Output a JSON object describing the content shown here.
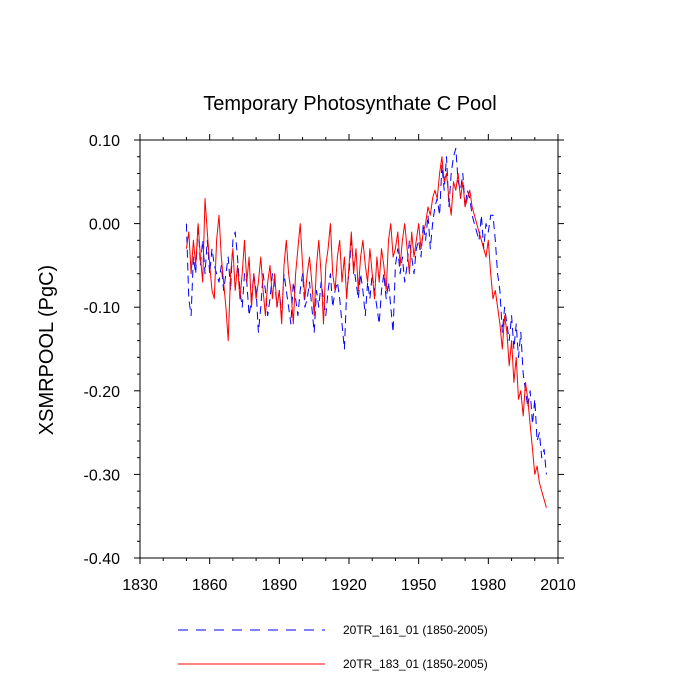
{
  "chart_data": {
    "type": "line",
    "title": "Temporary Photosynthate C Pool",
    "xlabel": "",
    "ylabel": "XSMRPOOL  (PgC)",
    "xlim": [
      1830,
      2010
    ],
    "ylim": [
      -0.4,
      0.1
    ],
    "xticks": [
      "1830",
      "1860",
      "1890",
      "1920",
      "1950",
      "1980",
      "2010"
    ],
    "yticks": [
      "0.10",
      "0.00",
      "-0.10",
      "-0.20",
      "-0.30",
      "-0.40"
    ],
    "series": [
      {
        "name": "20TR_161_01 (1850-2005)",
        "color": "#0000ff",
        "dash": "dashed",
        "x": [
          1850,
          1851,
          1852,
          1853,
          1854,
          1855,
          1856,
          1857,
          1858,
          1859,
          1860,
          1861,
          1862,
          1863,
          1864,
          1865,
          1866,
          1867,
          1868,
          1869,
          1870,
          1871,
          1872,
          1873,
          1874,
          1875,
          1876,
          1877,
          1878,
          1879,
          1880,
          1881,
          1882,
          1883,
          1884,
          1885,
          1886,
          1887,
          1888,
          1889,
          1890,
          1891,
          1892,
          1893,
          1894,
          1895,
          1896,
          1897,
          1898,
          1899,
          1900,
          1901,
          1902,
          1903,
          1904,
          1905,
          1906,
          1907,
          1908,
          1909,
          1910,
          1911,
          1912,
          1913,
          1914,
          1915,
          1916,
          1917,
          1918,
          1919,
          1920,
          1921,
          1922,
          1923,
          1924,
          1925,
          1926,
          1927,
          1928,
          1929,
          1930,
          1931,
          1932,
          1933,
          1934,
          1935,
          1936,
          1937,
          1938,
          1939,
          1940,
          1941,
          1942,
          1943,
          1944,
          1945,
          1946,
          1947,
          1948,
          1949,
          1950,
          1951,
          1952,
          1953,
          1954,
          1955,
          1956,
          1957,
          1958,
          1959,
          1960,
          1961,
          1962,
          1963,
          1964,
          1965,
          1966,
          1967,
          1968,
          1969,
          1970,
          1971,
          1972,
          1973,
          1974,
          1975,
          1976,
          1977,
          1978,
          1979,
          1980,
          1981,
          1982,
          1983,
          1984,
          1985,
          1986,
          1987,
          1988,
          1989,
          1990,
          1991,
          1992,
          1993,
          1994,
          1995,
          1996,
          1997,
          1998,
          1999,
          2000,
          2001,
          2002,
          2003,
          2004,
          2005
        ],
        "values": [
          0.0,
          -0.09,
          -0.11,
          -0.04,
          -0.06,
          0.0,
          -0.05,
          -0.02,
          -0.06,
          -0.02,
          -0.06,
          -0.03,
          -0.05,
          -0.06,
          -0.07,
          -0.05,
          -0.08,
          -0.06,
          -0.04,
          -0.08,
          -0.02,
          -0.01,
          -0.04,
          -0.08,
          -0.1,
          -0.06,
          -0.07,
          -0.11,
          -0.09,
          -0.06,
          -0.08,
          -0.13,
          -0.1,
          -0.06,
          -0.08,
          -0.11,
          -0.09,
          -0.06,
          -0.07,
          -0.1,
          -0.08,
          -0.11,
          -0.06,
          -0.08,
          -0.1,
          -0.12,
          -0.07,
          -0.09,
          -0.11,
          -0.08,
          -0.06,
          -0.1,
          -0.09,
          -0.07,
          -0.1,
          -0.13,
          -0.08,
          -0.1,
          -0.07,
          -0.09,
          -0.11,
          -0.08,
          -0.06,
          -0.1,
          -0.08,
          -0.07,
          -0.09,
          -0.12,
          -0.15,
          -0.08,
          -0.06,
          -0.02,
          -0.05,
          -0.07,
          -0.09,
          -0.06,
          -0.08,
          -0.11,
          -0.07,
          -0.09,
          -0.06,
          -0.08,
          -0.1,
          -0.12,
          -0.08,
          -0.06,
          -0.09,
          -0.07,
          -0.1,
          -0.13,
          -0.05,
          -0.03,
          -0.06,
          -0.04,
          -0.07,
          -0.05,
          -0.02,
          -0.04,
          -0.06,
          -0.03,
          -0.02,
          -0.04,
          0.0,
          -0.02,
          0.01,
          -0.03,
          0.0,
          0.02,
          0.03,
          0.01,
          0.07,
          0.04,
          0.08,
          0.02,
          0.06,
          0.08,
          0.09,
          0.05,
          0.04,
          0.06,
          0.02,
          0.04,
          0.03,
          0.01,
          0.0,
          -0.01,
          -0.02,
          0.01,
          -0.03,
          0.0,
          -0.01,
          0.01,
          0.01,
          -0.02,
          -0.06,
          -0.08,
          -0.13,
          -0.1,
          -0.12,
          -0.14,
          -0.11,
          -0.15,
          -0.12,
          -0.16,
          -0.13,
          -0.18,
          -0.2,
          -0.22,
          -0.2,
          -0.24,
          -0.21,
          -0.26,
          -0.25,
          -0.28,
          -0.27,
          -0.3
        ]
      },
      {
        "name": "20TR_183_01 (1850-2005)",
        "color": "#ff0000",
        "dash": "solid",
        "x": [
          1850,
          1851,
          1852,
          1853,
          1854,
          1855,
          1856,
          1857,
          1858,
          1859,
          1860,
          1861,
          1862,
          1863,
          1864,
          1865,
          1866,
          1867,
          1868,
          1869,
          1870,
          1871,
          1872,
          1873,
          1874,
          1875,
          1876,
          1877,
          1878,
          1879,
          1880,
          1881,
          1882,
          1883,
          1884,
          1885,
          1886,
          1887,
          1888,
          1889,
          1890,
          1891,
          1892,
          1893,
          1894,
          1895,
          1896,
          1897,
          1898,
          1899,
          1900,
          1901,
          1902,
          1903,
          1904,
          1905,
          1906,
          1907,
          1908,
          1909,
          1910,
          1911,
          1912,
          1913,
          1914,
          1915,
          1916,
          1917,
          1918,
          1919,
          1920,
          1921,
          1922,
          1923,
          1924,
          1925,
          1926,
          1927,
          1928,
          1929,
          1930,
          1931,
          1932,
          1933,
          1934,
          1935,
          1936,
          1937,
          1938,
          1939,
          1940,
          1941,
          1942,
          1943,
          1944,
          1945,
          1946,
          1947,
          1948,
          1949,
          1950,
          1951,
          1952,
          1953,
          1954,
          1955,
          1956,
          1957,
          1958,
          1959,
          1960,
          1961,
          1962,
          1963,
          1964,
          1965,
          1966,
          1967,
          1968,
          1969,
          1970,
          1971,
          1972,
          1973,
          1974,
          1975,
          1976,
          1977,
          1978,
          1979,
          1980,
          1981,
          1982,
          1983,
          1984,
          1985,
          1986,
          1987,
          1988,
          1989,
          1990,
          1991,
          1992,
          1993,
          1994,
          1995,
          1996,
          1997,
          1998,
          1999,
          2000,
          2001,
          2002,
          2003,
          2004,
          2005
        ],
        "values": [
          -0.03,
          -0.01,
          -0.06,
          -0.02,
          -0.05,
          0.0,
          -0.04,
          -0.07,
          0.03,
          -0.01,
          -0.05,
          -0.08,
          -0.09,
          -0.02,
          0.01,
          -0.04,
          -0.07,
          -0.1,
          -0.14,
          -0.06,
          -0.03,
          -0.08,
          -0.05,
          -0.09,
          -0.06,
          -0.02,
          -0.07,
          -0.04,
          -0.1,
          -0.06,
          -0.09,
          -0.07,
          -0.04,
          -0.08,
          -0.11,
          -0.07,
          -0.05,
          -0.09,
          -0.06,
          -0.1,
          -0.08,
          -0.12,
          -0.05,
          -0.02,
          -0.06,
          -0.08,
          -0.12,
          -0.06,
          -0.03,
          0.0,
          -0.05,
          -0.09,
          -0.06,
          -0.04,
          -0.07,
          -0.11,
          -0.05,
          -0.02,
          -0.06,
          -0.12,
          -0.05,
          -0.03,
          0.0,
          -0.06,
          -0.08,
          -0.04,
          -0.02,
          -0.07,
          -0.04,
          -0.09,
          -0.05,
          -0.01,
          -0.06,
          -0.03,
          -0.08,
          -0.04,
          -0.02,
          -0.05,
          -0.07,
          -0.03,
          -0.06,
          -0.09,
          -0.04,
          -0.07,
          -0.03,
          -0.05,
          -0.08,
          -0.02,
          0.0,
          -0.04,
          -0.03,
          -0.01,
          -0.05,
          -0.02,
          0.0,
          -0.03,
          -0.06,
          -0.01,
          -0.04,
          -0.02,
          0.0,
          -0.03,
          -0.01,
          0.0,
          0.02,
          0.01,
          0.03,
          0.04,
          0.03,
          0.06,
          0.08,
          0.05,
          0.06,
          0.03,
          0.01,
          0.05,
          0.04,
          0.06,
          0.03,
          0.05,
          0.02,
          0.03,
          0.04,
          0.02,
          0.01,
          0.0,
          -0.01,
          -0.02,
          -0.03,
          -0.04,
          -0.02,
          -0.06,
          -0.09,
          -0.08,
          -0.1,
          -0.12,
          -0.15,
          -0.11,
          -0.13,
          -0.17,
          -0.14,
          -0.19,
          -0.16,
          -0.21,
          -0.2,
          -0.23,
          -0.19,
          -0.21,
          -0.24,
          -0.27,
          -0.3,
          -0.29,
          -0.31,
          -0.32,
          -0.33,
          -0.34
        ]
      }
    ]
  }
}
